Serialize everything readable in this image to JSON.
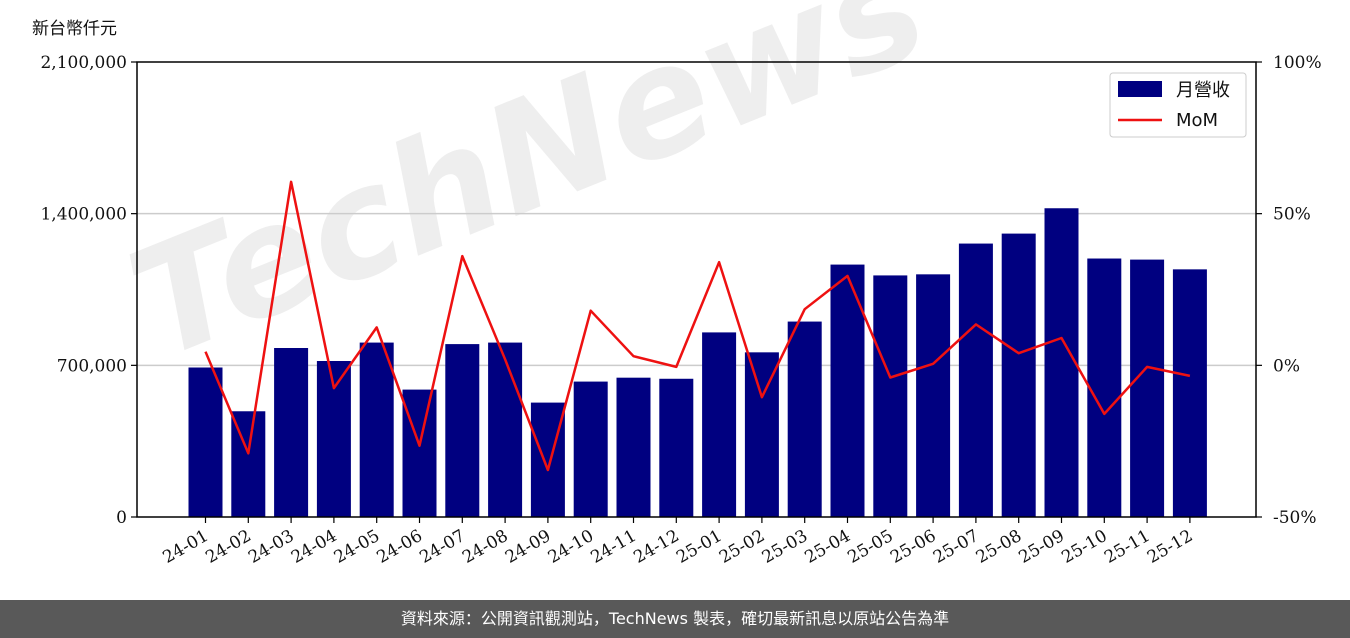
{
  "unit_label": "新台幣仟元",
  "watermark": "TechNews",
  "footer_text": "資料來源：公開資訊觀測站，TechNews 製表，確切最新訊息以原站公告為準",
  "colors": {
    "bar": "#000080",
    "line": "#ee1111",
    "grid": "#cccccc",
    "footer_bg": "#595959"
  },
  "chart_data": {
    "type": "bar",
    "categories": [
      "24-01",
      "24-02",
      "24-03",
      "24-04",
      "24-05",
      "24-06",
      "24-07",
      "24-08",
      "24-09",
      "24-10",
      "24-11",
      "24-12",
      "25-01",
      "25-02",
      "25-03",
      "25-04",
      "25-05",
      "25-06",
      "25-07",
      "25-08",
      "25-09",
      "25-10",
      "25-11",
      "25-12"
    ],
    "series": [
      {
        "name": "月營收",
        "type": "bar",
        "axis": "left",
        "values": [
          690000,
          488000,
          780000,
          720000,
          805000,
          588000,
          798000,
          805000,
          528000,
          625000,
          643000,
          638000,
          852000,
          760000,
          902000,
          1165000,
          1115000,
          1120000,
          1262000,
          1308000,
          1425000,
          1193000,
          1188000,
          1143000
        ]
      },
      {
        "name": "MoM",
        "type": "line",
        "axis": "right",
        "unit": "%",
        "values": [
          4.5,
          -29.0,
          60.5,
          -7.5,
          12.5,
          -26.5,
          36.0,
          2.0,
          -34.5,
          18.0,
          3.0,
          -0.5,
          34.0,
          -10.5,
          18.5,
          29.5,
          -4.0,
          0.5,
          13.5,
          4.0,
          9.0,
          -16.0,
          -0.5,
          -3.5
        ]
      }
    ],
    "y_left": {
      "lim": [
        0,
        2100000
      ],
      "ticks": [
        0,
        700000,
        1400000,
        2100000
      ],
      "tick_labels": [
        "0",
        "700,000",
        "1,400,000",
        "2,100,000"
      ]
    },
    "y_right": {
      "lim": [
        -50,
        100
      ],
      "ticks": [
        -50,
        0,
        50,
        100
      ],
      "tick_labels": [
        "-50%",
        "0%",
        "50%",
        "100%"
      ]
    },
    "grid": "horizontal",
    "legend": {
      "placement": "top-right",
      "entries": [
        "月營收",
        "MoM"
      ]
    }
  }
}
